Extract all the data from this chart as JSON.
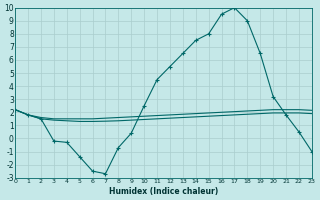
{
  "xlabel": "Humidex (Indice chaleur)",
  "background_color": "#c5e8e8",
  "grid_color": "#aacece",
  "line_color": "#006868",
  "xlim": [
    0,
    23
  ],
  "ylim": [
    -3,
    10
  ],
  "xticks": [
    0,
    1,
    2,
    3,
    4,
    5,
    6,
    7,
    8,
    9,
    10,
    11,
    12,
    13,
    14,
    15,
    16,
    17,
    18,
    19,
    20,
    21,
    22,
    23
  ],
  "yticks": [
    -3,
    -2,
    -1,
    0,
    1,
    2,
    3,
    4,
    5,
    6,
    7,
    8,
    9,
    10
  ],
  "series1_x": [
    0,
    1,
    2,
    3,
    4,
    5,
    6,
    7,
    8,
    9,
    10,
    11,
    12,
    13,
    14,
    15,
    16,
    17,
    18,
    19,
    20,
    21,
    22,
    23
  ],
  "series1_y": [
    2.2,
    1.8,
    1.6,
    1.5,
    1.5,
    1.5,
    1.5,
    1.55,
    1.6,
    1.65,
    1.7,
    1.75,
    1.8,
    1.85,
    1.9,
    1.95,
    2.0,
    2.05,
    2.1,
    2.15,
    2.2,
    2.2,
    2.2,
    2.15
  ],
  "series2_x": [
    0,
    1,
    2,
    3,
    4,
    5,
    6,
    7,
    8,
    9,
    10,
    11,
    12,
    13,
    14,
    15,
    16,
    17,
    18,
    19,
    20,
    21,
    22,
    23
  ],
  "series2_y": [
    2.2,
    1.8,
    1.5,
    1.4,
    1.35,
    1.3,
    1.3,
    1.32,
    1.35,
    1.4,
    1.45,
    1.5,
    1.55,
    1.6,
    1.65,
    1.7,
    1.75,
    1.8,
    1.85,
    1.9,
    1.95,
    1.95,
    1.95,
    1.9
  ],
  "series3_x": [
    0,
    1,
    2,
    3,
    4,
    5,
    6,
    7,
    8,
    9,
    10,
    11,
    12,
    13,
    14,
    15,
    16,
    17,
    18,
    19,
    20,
    21,
    22,
    23
  ],
  "series3_y": [
    2.2,
    1.8,
    1.5,
    -0.2,
    -0.3,
    -1.4,
    -2.5,
    -2.7,
    -0.7,
    0.4,
    2.5,
    4.5,
    5.5,
    6.5,
    7.5,
    8.0,
    9.5,
    10.0,
    9.0,
    6.5,
    3.2,
    1.8,
    0.5,
    -1.0
  ],
  "marker": "+"
}
